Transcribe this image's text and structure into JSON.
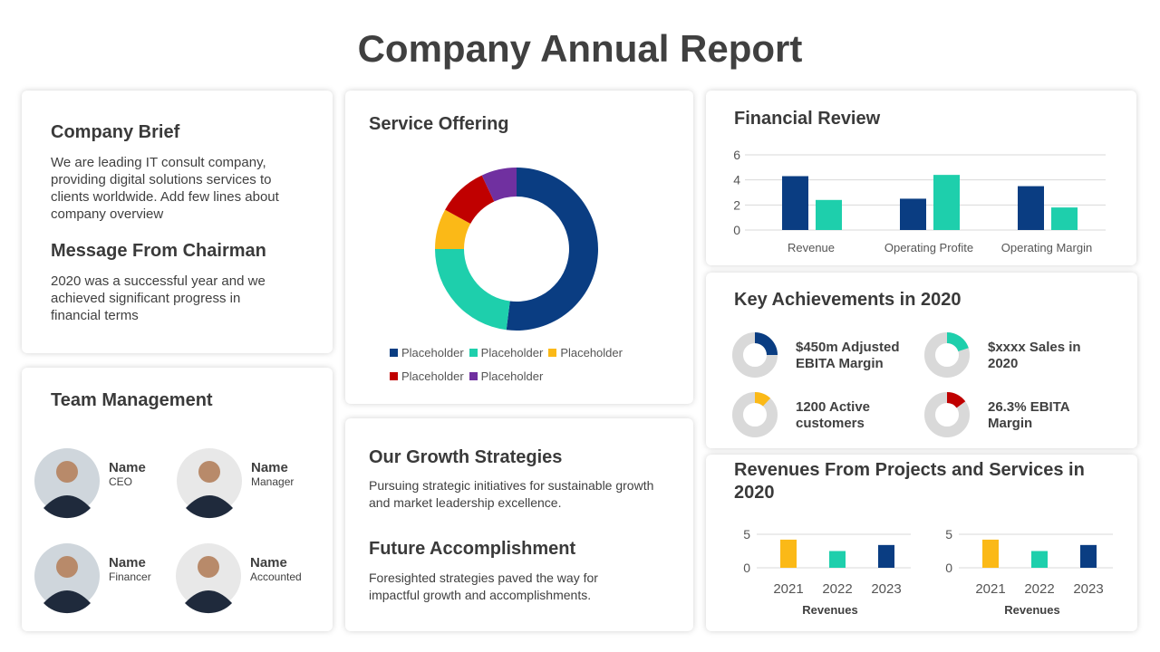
{
  "title": "Company Annual Report",
  "brief": {
    "heading": "Company Brief",
    "text": "We are leading IT consult company, providing digital solutions services to clients worldwide. Add few lines about company overview"
  },
  "chairman": {
    "heading": "Message From Chairman",
    "text": "2020 was a successful year and we achieved significant progress in financial terms"
  },
  "team": {
    "heading": "Team Management",
    "members": [
      {
        "name": "Name",
        "role": "CEO"
      },
      {
        "name": "Name",
        "role": "Manager"
      },
      {
        "name": "Name",
        "role": "Financer"
      },
      {
        "name": "Name",
        "role": "Accounted"
      }
    ]
  },
  "growth": {
    "heading": "Our Growth Strategies",
    "text": "Pursuing strategic initiatives for sustainable growth and market leadership excellence."
  },
  "future": {
    "heading": "Future Accomplishment",
    "text": "Foresighted strategies paved the way for impactful growth and accomplishments."
  },
  "achievements": {
    "heading": "Key Achievements in 2020",
    "items": [
      {
        "label": "$450m Adjusted EBITA Margin",
        "value": 25,
        "color": "#0a3d82"
      },
      {
        "label": "$xxxx Sales in 2020",
        "value": 20,
        "color": "#1ecfac"
      },
      {
        "label": "1200 Active customers",
        "value": 12,
        "color": "#fbb917"
      },
      {
        "label": "26.3% EBITA Margin",
        "value": 15,
        "color": "#c00000"
      }
    ]
  },
  "revenues": {
    "heading": "Revenues From Projects and Services in 2020"
  },
  "chart_data": [
    {
      "type": "pie",
      "title": "Service Offering",
      "categories": [
        "Placeholder",
        "Placeholder",
        "Placeholder",
        "Placeholder",
        "Placeholder"
      ],
      "values": [
        52,
        23,
        8,
        10,
        7
      ],
      "colors": [
        "#0a3d82",
        "#1ecfac",
        "#fbb917",
        "#c00000",
        "#7030a0"
      ]
    },
    {
      "type": "bar",
      "title": "Financial Review",
      "categories": [
        "Revenue",
        "Operating Profite",
        "Operating Margin"
      ],
      "series": [
        {
          "color": "#0a3d82",
          "values": [
            4.3,
            2.5,
            3.5
          ]
        },
        {
          "color": "#1ecfac",
          "values": [
            2.4,
            4.4,
            1.8
          ]
        }
      ],
      "ylim": [
        0,
        6
      ],
      "yticks": [
        0,
        2,
        4,
        6
      ],
      "grid": true
    },
    {
      "type": "bar",
      "categories": [
        "2021",
        "2022",
        "2023"
      ],
      "values": [
        4.2,
        2.5,
        3.4
      ],
      "colors": [
        "#fbb917",
        "#1ecfac",
        "#0a3d82"
      ],
      "xlabel": "Revenues",
      "ylim": [
        0,
        5
      ],
      "yticks": [
        0,
        5
      ],
      "grid": true
    },
    {
      "type": "bar",
      "categories": [
        "2021",
        "2022",
        "2023"
      ],
      "values": [
        4.2,
        2.5,
        3.4
      ],
      "colors": [
        "#fbb917",
        "#1ecfac",
        "#0a3d82"
      ],
      "xlabel": "Revenues",
      "ylim": [
        0,
        5
      ],
      "yticks": [
        0,
        5
      ],
      "grid": true
    }
  ]
}
